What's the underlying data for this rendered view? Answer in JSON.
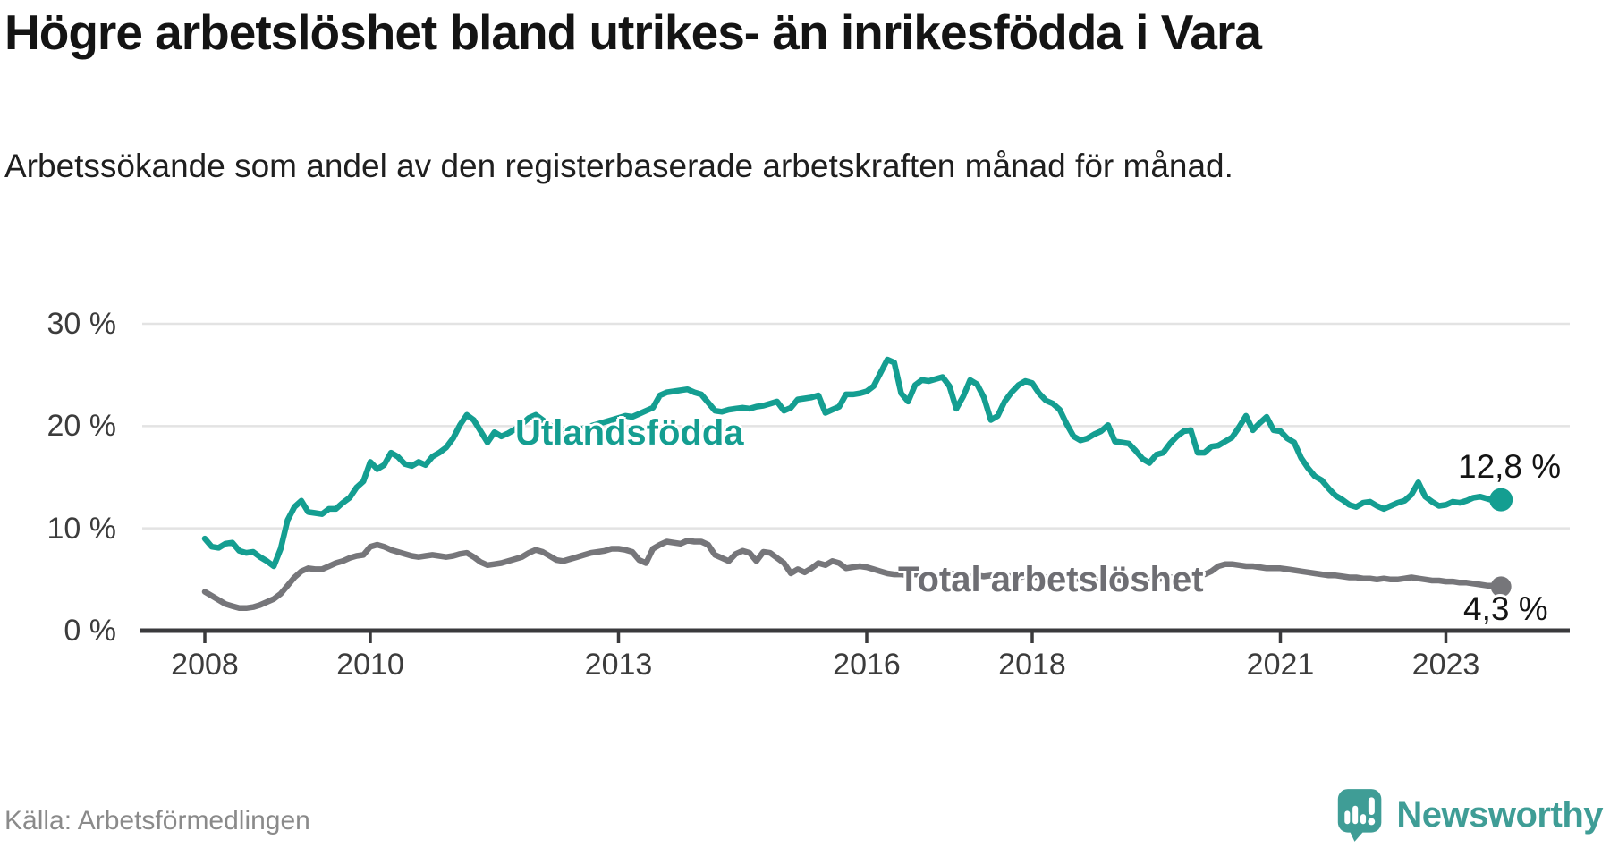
{
  "header": {
    "title": "Högre arbetslöshet bland utrikes- än inrikesfödda i Vara",
    "subtitle": "Arbetssökande som andel av den registerbaserade arbetskraften månad för månad."
  },
  "footer": {
    "source": "Källa: Arbetsförmedlingen",
    "brand": "Newsworthy"
  },
  "colors": {
    "foreign_born": "#149e91",
    "total": "#76767a",
    "total_label": "#6e6e73",
    "axis": "#3a3a3c",
    "grid": "#e3e3e3",
    "text": "#141414",
    "brand": "#3f9d96"
  },
  "chart_data": {
    "type": "line",
    "title": "Högre arbetslöshet bland utrikes- än inrikesfödda i Vara",
    "xlabel": "",
    "ylabel": "Arbetssökande som andel av den registerbaserade arbetskraften",
    "x_start_year": 2008,
    "x_interval": "monthly",
    "x_end": "2023-09",
    "x_tick_years": [
      2008,
      2010,
      2013,
      2016,
      2018,
      2021,
      2023
    ],
    "x_tick_labels": [
      "2008",
      "2010",
      "2013",
      "2016",
      "2018",
      "2021",
      "2023"
    ],
    "y_ticks": [
      0,
      10,
      20,
      30
    ],
    "y_tick_labels": [
      "0 %",
      "10 %",
      "20 %",
      "30 %"
    ],
    "ylim": [
      0,
      30
    ],
    "grid": "horizontal",
    "legend_position": "inline-labels",
    "series": [
      {
        "name": "Utlandsfödda",
        "end_label": "12,8 %",
        "last_value": 12.8,
        "values": [
          9.0,
          8.2,
          8.1,
          8.5,
          8.6,
          7.8,
          7.6,
          7.7,
          7.2,
          6.8,
          6.3,
          8.0,
          10.8,
          12.1,
          12.7,
          11.6,
          11.5,
          11.4,
          11.9,
          11.9,
          12.5,
          13.0,
          14.0,
          14.6,
          16.5,
          15.8,
          16.2,
          17.4,
          17.0,
          16.3,
          16.1,
          16.5,
          16.2,
          17.0,
          17.4,
          17.9,
          18.8,
          20.1,
          21.1,
          20.6,
          19.5,
          18.4,
          19.4,
          19.0,
          19.3,
          19.7,
          20.2,
          20.8,
          21.1,
          20.6,
          20.1,
          19.8,
          19.6,
          19.3,
          19.6,
          19.8,
          20.0,
          20.2,
          20.4,
          20.6,
          20.8,
          21.0,
          20.9,
          21.2,
          21.5,
          21.8,
          23.0,
          23.3,
          23.4,
          23.5,
          23.6,
          23.3,
          23.1,
          22.3,
          21.5,
          21.4,
          21.6,
          21.7,
          21.8,
          21.7,
          21.9,
          22.0,
          22.2,
          22.4,
          21.5,
          21.8,
          22.6,
          22.7,
          22.8,
          23.0,
          21.3,
          21.6,
          21.9,
          23.1,
          23.1,
          23.2,
          23.4,
          23.9,
          25.2,
          26.5,
          26.2,
          23.2,
          22.4,
          24.0,
          24.5,
          24.4,
          24.6,
          24.8,
          23.9,
          21.7,
          22.9,
          24.5,
          24.1,
          22.8,
          20.6,
          21.0,
          22.4,
          23.3,
          24.0,
          24.4,
          24.2,
          23.2,
          22.5,
          22.2,
          21.6,
          20.2,
          19.0,
          18.6,
          18.8,
          19.2,
          19.5,
          20.1,
          18.5,
          18.4,
          18.3,
          17.6,
          16.8,
          16.4,
          17.2,
          17.4,
          18.3,
          19.0,
          19.5,
          19.6,
          17.4,
          17.4,
          18.0,
          18.1,
          18.5,
          18.9,
          19.9,
          21.0,
          19.6,
          20.3,
          20.9,
          19.6,
          19.5,
          18.8,
          18.4,
          16.9,
          15.9,
          15.1,
          14.7,
          13.9,
          13.2,
          12.8,
          12.3,
          12.1,
          12.5,
          12.6,
          12.2,
          11.9,
          12.2,
          12.5,
          12.7,
          13.3,
          14.5,
          13.1,
          12.6,
          12.2,
          12.3,
          12.6,
          12.5,
          12.7,
          13.0,
          13.1,
          12.9,
          12.7,
          12.8
        ]
      },
      {
        "name": "Total arbetslöshet",
        "end_label": "4,3 %",
        "last_value": 4.3,
        "values": [
          3.8,
          3.4,
          3.0,
          2.6,
          2.4,
          2.2,
          2.2,
          2.3,
          2.5,
          2.8,
          3.1,
          3.6,
          4.4,
          5.2,
          5.8,
          6.1,
          6.0,
          6.0,
          6.3,
          6.6,
          6.8,
          7.1,
          7.3,
          7.4,
          8.2,
          8.4,
          8.2,
          7.9,
          7.7,
          7.5,
          7.3,
          7.2,
          7.3,
          7.4,
          7.3,
          7.2,
          7.3,
          7.5,
          7.6,
          7.2,
          6.7,
          6.4,
          6.5,
          6.6,
          6.8,
          7.0,
          7.2,
          7.6,
          7.9,
          7.7,
          7.3,
          6.9,
          6.8,
          7.0,
          7.2,
          7.4,
          7.6,
          7.7,
          7.8,
          8.0,
          8.0,
          7.9,
          7.7,
          6.9,
          6.6,
          8.0,
          8.4,
          8.7,
          8.6,
          8.5,
          8.8,
          8.7,
          8.7,
          8.4,
          7.4,
          7.1,
          6.8,
          7.5,
          7.8,
          7.6,
          6.8,
          7.7,
          7.6,
          7.1,
          6.6,
          5.6,
          6.0,
          5.7,
          6.1,
          6.6,
          6.4,
          6.8,
          6.6,
          6.1,
          6.2,
          6.3,
          6.2,
          6.0,
          5.8,
          5.6,
          5.5,
          5.5,
          5.4,
          5.5,
          5.4,
          5.5,
          5.4,
          5.5,
          5.6,
          5.5,
          5.4,
          5.3,
          5.4,
          5.3,
          5.4,
          5.3,
          5.4,
          5.3,
          5.2,
          5.3,
          5.2,
          5.3,
          5.2,
          5.1,
          5.2,
          5.1,
          5.0,
          5.1,
          5.0,
          5.1,
          5.0,
          5.1,
          5.0,
          4.9,
          5.0,
          4.9,
          5.0,
          5.1,
          5.0,
          5.1,
          5.2,
          5.2,
          5.3,
          5.3,
          5.4,
          5.5,
          5.8,
          6.3,
          6.5,
          6.5,
          6.4,
          6.3,
          6.3,
          6.2,
          6.1,
          6.1,
          6.1,
          6.0,
          5.9,
          5.8,
          5.7,
          5.6,
          5.5,
          5.4,
          5.4,
          5.3,
          5.2,
          5.2,
          5.1,
          5.1,
          5.0,
          5.1,
          5.0,
          5.0,
          5.1,
          5.2,
          5.1,
          5.0,
          4.9,
          4.9,
          4.8,
          4.8,
          4.7,
          4.7,
          4.6,
          4.5,
          4.4,
          4.4,
          4.3
        ]
      }
    ]
  }
}
